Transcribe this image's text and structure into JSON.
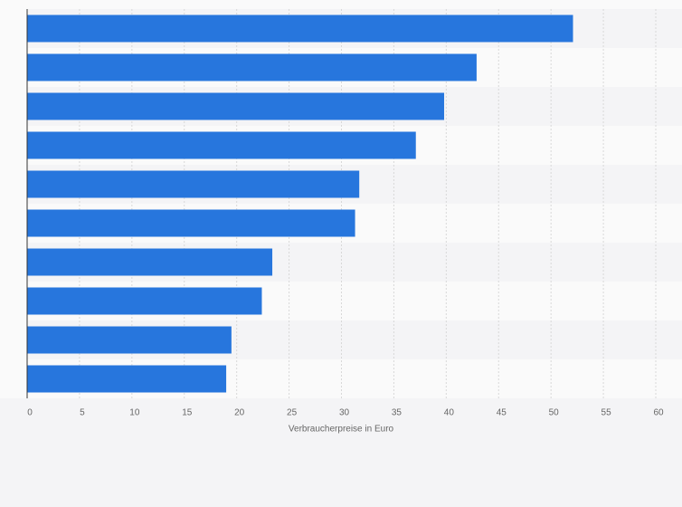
{
  "chart_data": {
    "type": "barh",
    "categories": [
      null,
      null,
      null,
      null,
      null,
      null,
      null,
      null,
      null,
      null
    ],
    "values": [
      52.1,
      42.9,
      39.8,
      37.1,
      31.7,
      31.3,
      23.4,
      22.4,
      19.5,
      19.0
    ],
    "color": "#2776dd",
    "xlabel": "Verbraucherpreise in Euro",
    "xlim": [
      0,
      60
    ],
    "xticks": [
      0,
      5,
      10,
      15,
      20,
      25,
      30,
      35,
      40,
      45,
      50,
      55,
      60
    ],
    "grid": true
  }
}
